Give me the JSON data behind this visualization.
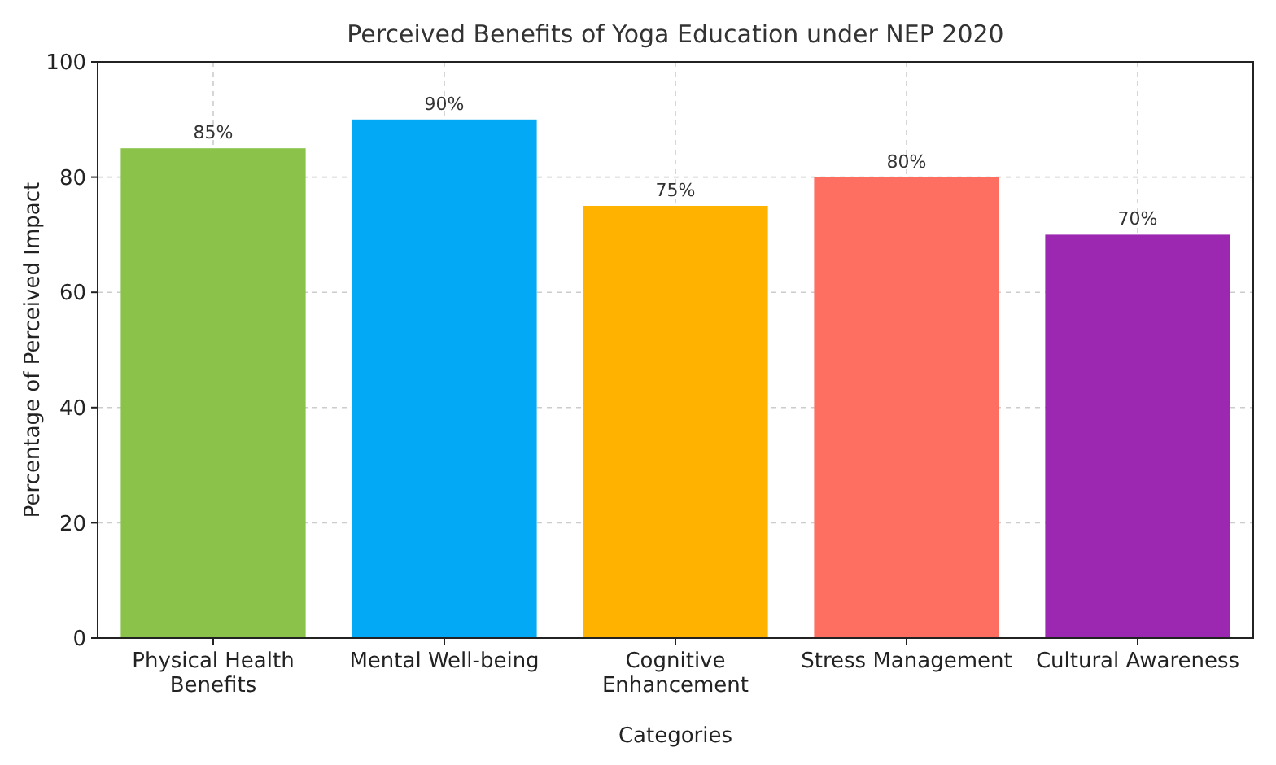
{
  "chart_data": {
    "type": "bar",
    "title": "Perceived Benefits of Yoga Education under NEP 2020",
    "xlabel": "Categories",
    "ylabel": "Percentage of Perceived Impact",
    "categories": [
      "Physical Health Benefits",
      "Mental Well-being",
      "Cognitive Enhancement",
      "Stress Management",
      "Cultural Awareness"
    ],
    "values": [
      85,
      90,
      75,
      80,
      70
    ],
    "colors": [
      "#8bc34a",
      "#03a9f4",
      "#ffb300",
      "#ff6f61",
      "#9c27b0"
    ],
    "value_labels": [
      "85%",
      "90%",
      "75%",
      "80%",
      "70%"
    ],
    "ylim": [
      0,
      100
    ],
    "yticks": [
      0,
      20,
      40,
      60,
      80,
      100
    ],
    "grid": true
  }
}
